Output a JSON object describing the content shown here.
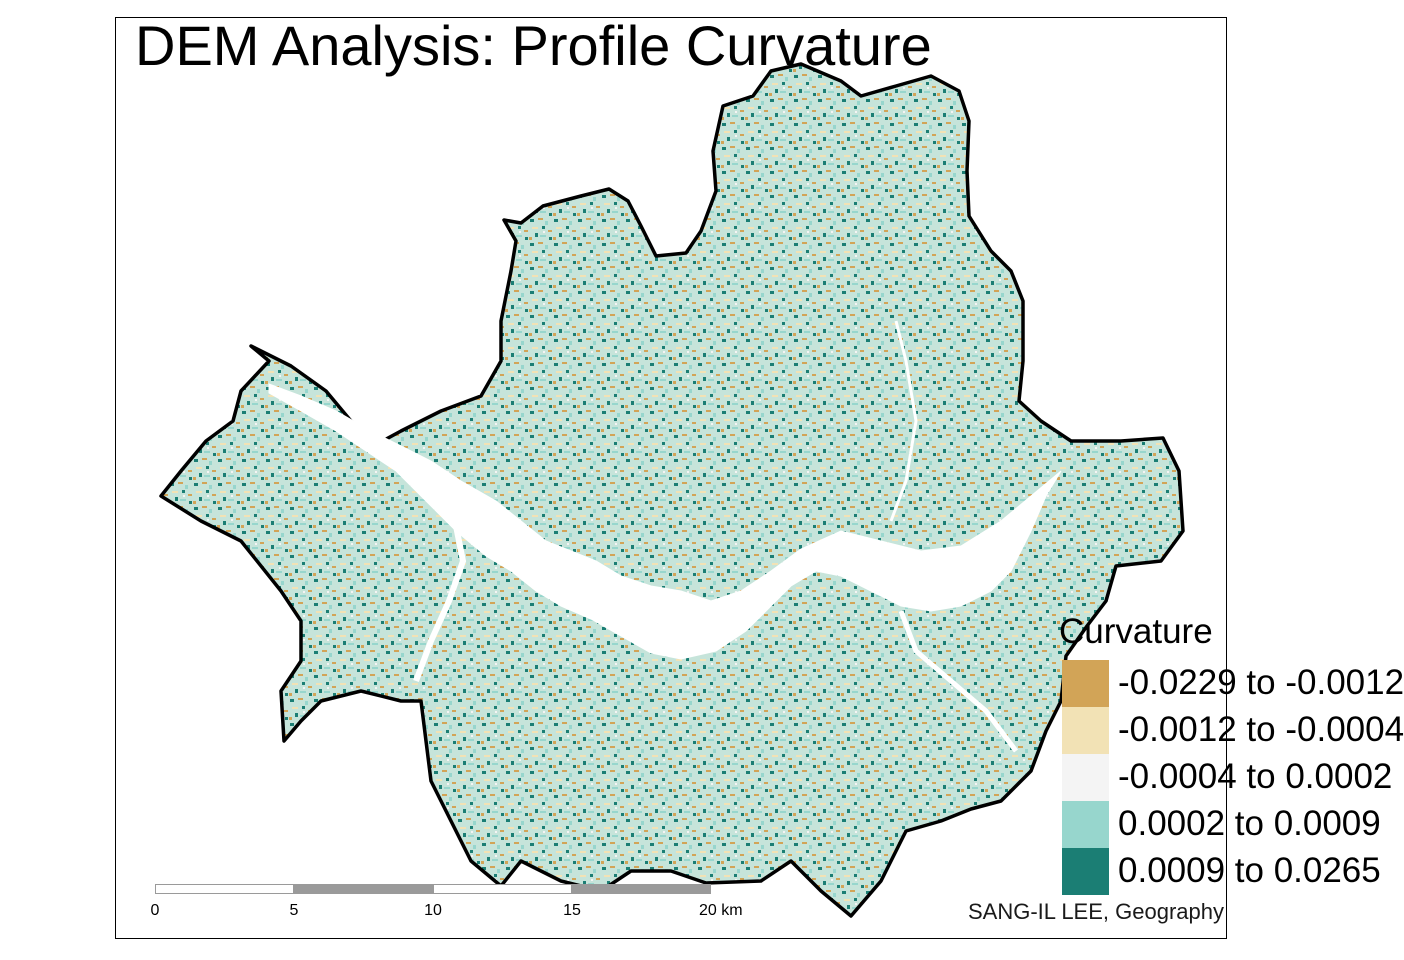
{
  "title": "DEM Analysis: Profile Curvature",
  "legend": {
    "title": "Curvature",
    "items": [
      {
        "label": "-0.0229 to -0.0012",
        "color": "#d2a457"
      },
      {
        "label": "-0.0012 to -0.0004",
        "color": "#f2e2b5"
      },
      {
        "label": "-0.0004 to 0.0002",
        "color": "#f4f4f4"
      },
      {
        "label": "0.0002 to 0.0009",
        "color": "#97d6cd"
      },
      {
        "label": "0.0009 to 0.0265",
        "color": "#1b7e74"
      }
    ]
  },
  "scale_bar": {
    "ticks": [
      "0",
      "5",
      "10",
      "15",
      "20 km"
    ],
    "fills": [
      "#ffffff",
      "#9a9a9a",
      "#ffffff",
      "#9a9a9a"
    ]
  },
  "credit": "SANG-IL LEE, Geography",
  "map": {
    "land_color": "#bfe0d6",
    "river_color": "#ffffff",
    "boundary_color": "#000000"
  }
}
